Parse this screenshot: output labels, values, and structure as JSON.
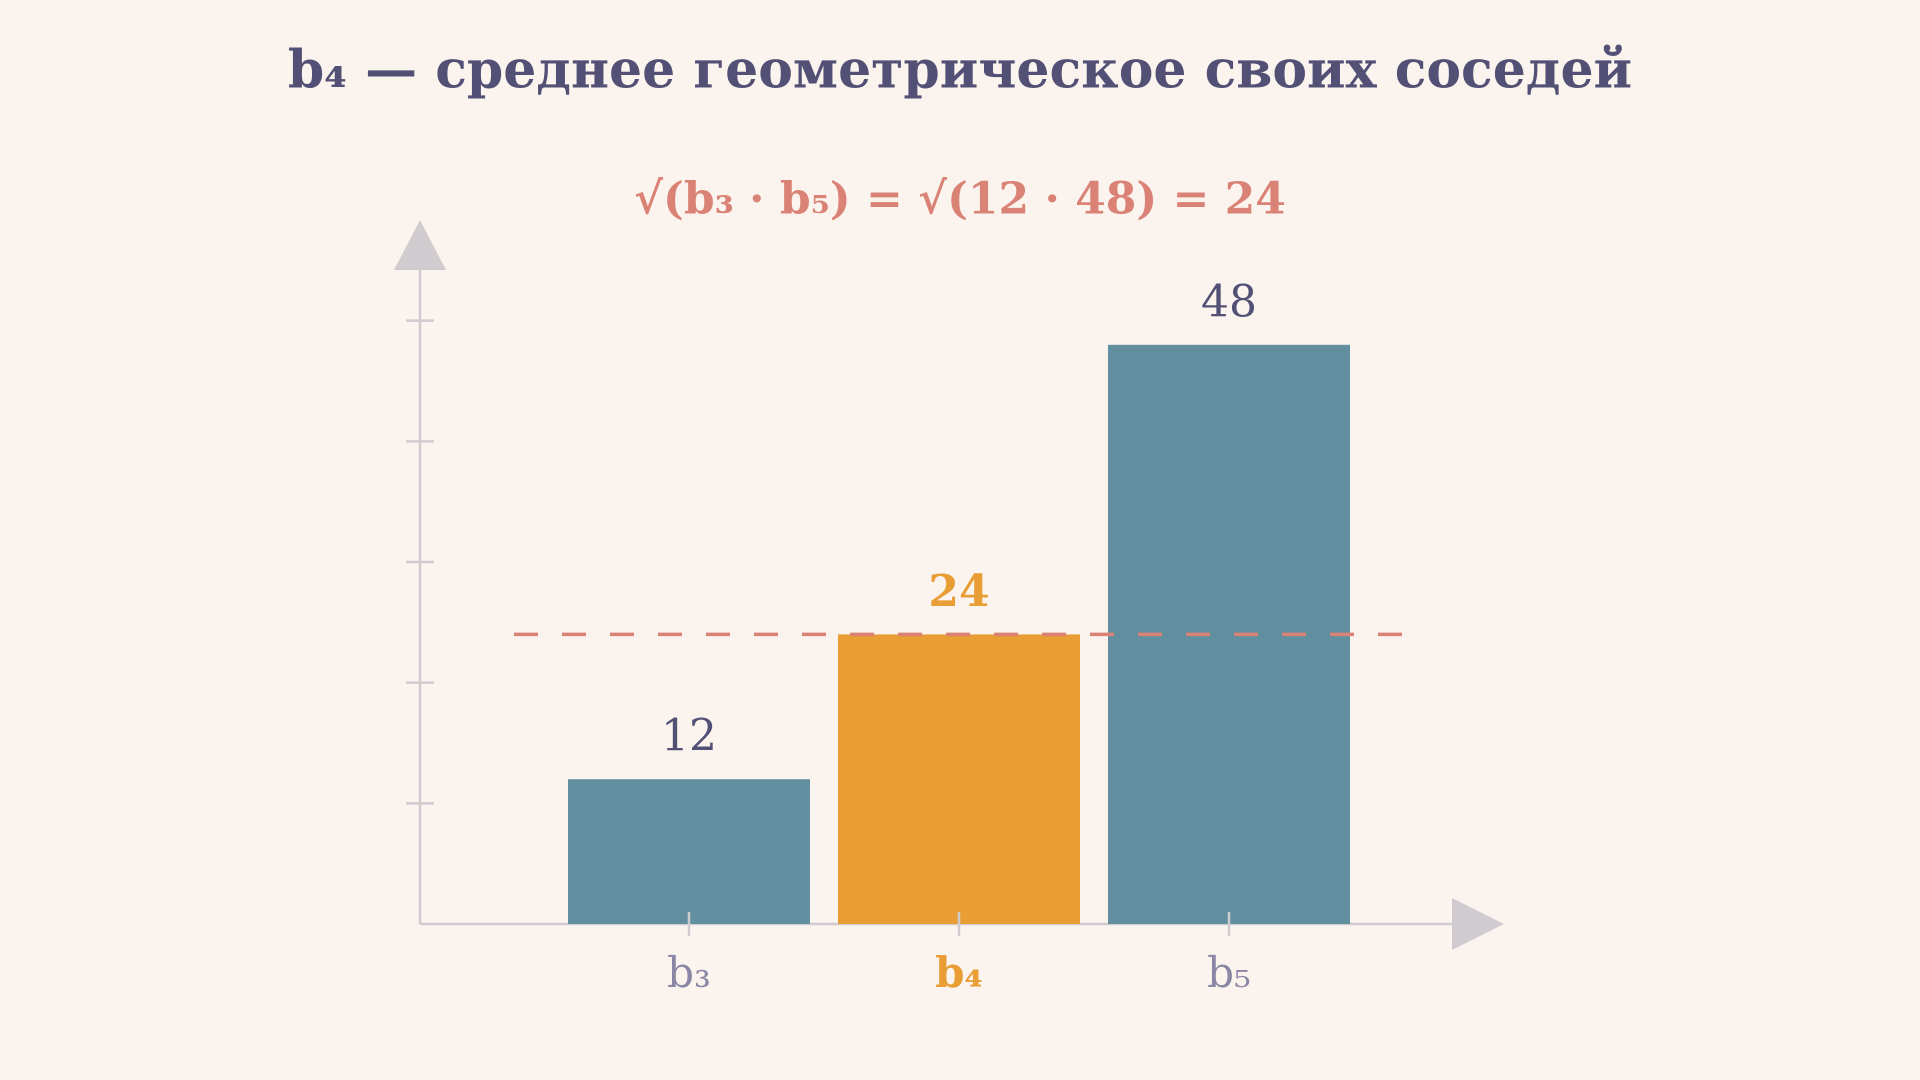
{
  "chart_data": {
    "type": "bar",
    "title": "b₄ — среднее геометрическое своих соседей",
    "subtitle": "√(b₃ · b₅) = √(12 · 48) = 24",
    "categories": [
      "b₃",
      "b₄",
      "b₅"
    ],
    "values": [
      12,
      24,
      48
    ],
    "colors": [
      "#628fa0",
      "#e89d35",
      "#628fa0"
    ],
    "label_colors": [
      "#525075",
      "#e89d35",
      "#525075"
    ],
    "category_colors": [
      "#8a86a6",
      "#e89d35",
      "#8a86a6"
    ],
    "highlight": 1,
    "reference_line": 24,
    "reference_color": "#d98275",
    "ylim": [
      0,
      60
    ],
    "yticks": [
      10,
      20,
      30,
      40,
      50
    ],
    "grid": false
  }
}
